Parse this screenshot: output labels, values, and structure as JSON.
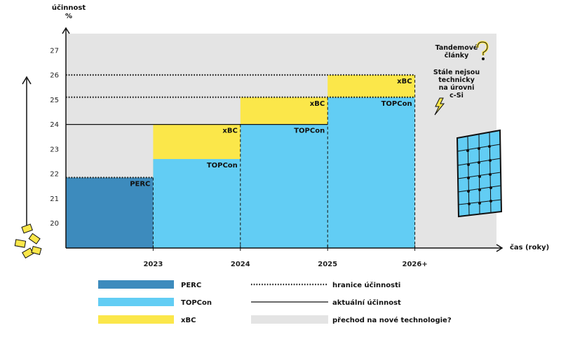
{
  "chart_data": {
    "type": "bar",
    "xlabel": "čas (roky)",
    "ylabel_lines": [
      "účinnost",
      "%"
    ],
    "y_ticks": [
      20,
      21,
      22,
      23,
      24,
      25,
      26,
      27
    ],
    "ylim": [
      19,
      27.9
    ],
    "x_ticks": [
      "2023",
      "2024",
      "2025",
      "2026+"
    ],
    "periods": [
      {
        "start": 2022,
        "end": 2023,
        "perc": 21.85,
        "topcon": 21.85,
        "xbc": 21.85
      },
      {
        "start": 2023,
        "end": 2024,
        "perc": 19.0,
        "topcon": 22.6,
        "xbc": 24.0
      },
      {
        "start": 2024,
        "end": 2025,
        "perc": 19.0,
        "topcon": 24.0,
        "xbc": 25.1
      },
      {
        "start": 2025,
        "end": 2026,
        "perc": 19.0,
        "topcon": 25.1,
        "xbc": 26.0
      }
    ],
    "transition_zone": {
      "start": 2022,
      "end": 2027
    },
    "efficiency_limits": [
      {
        "name": "PERC",
        "value": 21.85,
        "start": 2022,
        "end": 2023
      },
      {
        "name": "TOPCon",
        "value": 25.1,
        "start": 2022,
        "end": 2026
      },
      {
        "name": "xBC",
        "value": 26.0,
        "start": 2022,
        "end": 2026
      }
    ],
    "current_efficiency": [
      {
        "value": 24.0,
        "start": 2022,
        "end": 2025
      }
    ],
    "segment_labels": [
      {
        "text": "PERC",
        "value": 21.85,
        "at": 2023
      },
      {
        "text": "TOPCon",
        "value": 22.6,
        "at": 2024
      },
      {
        "text": "xBC",
        "value": 24.0,
        "at": 2024
      },
      {
        "text": "TOPCon",
        "value": 24.0,
        "at": 2025
      },
      {
        "text": "xBC",
        "value": 25.1,
        "at": 2025
      },
      {
        "text": "TOPCon",
        "value": 25.1,
        "at": 2026
      },
      {
        "text": "xBC",
        "value": 26.0,
        "at": 2026
      }
    ],
    "annotations": {
      "tandem_lines": [
        "Tandemové",
        "články"
      ],
      "note_lines": [
        "Stále nejsou",
        "technicky",
        "na úrovni",
        "c-Si"
      ]
    },
    "legend": [
      {
        "kind": "swatch",
        "color": "#3d8bbd",
        "label": "PERC"
      },
      {
        "kind": "swatch",
        "color": "#62cdf4",
        "label": "TOPCon"
      },
      {
        "kind": "swatch",
        "color": "#fbe74a",
        "label": "xBC"
      },
      {
        "kind": "dotted",
        "label": "hranice účinnosti"
      },
      {
        "kind": "solid",
        "label": "aktuální účinnost"
      },
      {
        "kind": "swatch",
        "color": "#e4e4e4",
        "label": "přechod na nové technologie?"
      }
    ],
    "colors": {
      "perc": "#3d8bbd",
      "topcon": "#62cdf4",
      "xbc": "#fbe74a",
      "transition": "#e4e4e4"
    }
  }
}
